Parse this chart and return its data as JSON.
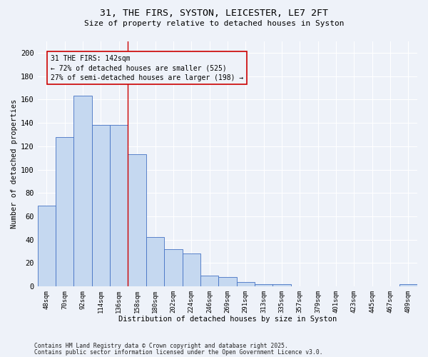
{
  "title_line1": "31, THE FIRS, SYSTON, LEICESTER, LE7 2FT",
  "title_line2": "Size of property relative to detached houses in Syston",
  "xlabel": "Distribution of detached houses by size in Syston",
  "ylabel": "Number of detached properties",
  "categories": [
    "48sqm",
    "70sqm",
    "92sqm",
    "114sqm",
    "136sqm",
    "158sqm",
    "180sqm",
    "202sqm",
    "224sqm",
    "246sqm",
    "269sqm",
    "291sqm",
    "313sqm",
    "335sqm",
    "357sqm",
    "379sqm",
    "401sqm",
    "423sqm",
    "445sqm",
    "467sqm",
    "489sqm"
  ],
  "values": [
    69,
    128,
    163,
    138,
    138,
    113,
    42,
    32,
    28,
    9,
    8,
    4,
    2,
    2,
    0,
    0,
    0,
    0,
    0,
    0,
    2
  ],
  "bar_color": "#c5d8f0",
  "bar_edge_color": "#4472c4",
  "annotation_line1": "31 THE FIRS: 142sqm",
  "annotation_line2": "← 72% of detached houses are smaller (525)",
  "annotation_line3": "27% of semi-detached houses are larger (198) →",
  "vline_x": 4.5,
  "vline_color": "#cc0000",
  "annotation_box_edge": "#cc0000",
  "ylim": [
    0,
    210
  ],
  "yticks": [
    0,
    20,
    40,
    60,
    80,
    100,
    120,
    140,
    160,
    180,
    200
  ],
  "footnote1": "Contains HM Land Registry data © Crown copyright and database right 2025.",
  "footnote2": "Contains public sector information licensed under the Open Government Licence v3.0.",
  "bg_color": "#eef2f9",
  "grid_color": "#ffffff"
}
